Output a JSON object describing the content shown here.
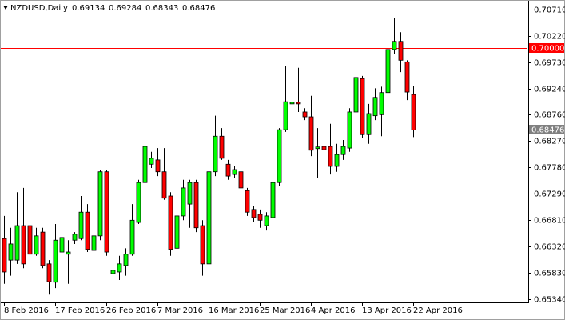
{
  "chart_data": {
    "type": "candlestick",
    "title": "NZDUSD,Daily",
    "categories": [
      "8 Feb 2016",
      null,
      null,
      null,
      null,
      null,
      null,
      null,
      "17 Feb 2016",
      null,
      null,
      null,
      null,
      null,
      null,
      null,
      "26 Feb 2016",
      null,
      null,
      null,
      null,
      null,
      null,
      null,
      "7 Mar 2016",
      null,
      null,
      null,
      null,
      null,
      null,
      null,
      "16 Mar 2016",
      null,
      null,
      null,
      null,
      null,
      null,
      null,
      "25 Mar 2016",
      null,
      null,
      null,
      null,
      null,
      null,
      null,
      "4 Apr 2016",
      null,
      null,
      null,
      null,
      null,
      null,
      null,
      "13 Apr 2016",
      null,
      null,
      null,
      null,
      null,
      null,
      null,
      "22 Apr 2016"
    ],
    "open": [
      0.6646,
      0.6606,
      0.6606,
      0.667,
      0.667,
      0.6617,
      0.6658,
      0.6599,
      0.6565,
      0.6621,
      0.6617,
      0.6643,
      0.6646,
      0.6695,
      0.6624,
      0.6651,
      0.677,
      0.6581,
      0.6584,
      0.6596,
      0.6617,
      0.6676,
      0.675,
      0.6784,
      0.6792,
      0.677,
      0.6725,
      0.6628,
      0.6688,
      0.671,
      0.675,
      0.667,
      0.6599,
      0.677,
      0.6836,
      0.6784,
      0.6765,
      0.677,
      0.6735,
      0.67,
      0.6691,
      0.667,
      0.6685,
      0.675,
      0.6848,
      0.6896,
      0.6899,
      0.6881,
      0.6872,
      0.6813,
      0.6817,
      0.6817,
      0.678,
      0.6802,
      0.6814,
      0.6881,
      0.6943,
      0.6839,
      0.6874,
      0.6876,
      0.6917,
      0.6997,
      0.7012,
      0.6974,
      0.69134
    ],
    "high": [
      0.6688,
      0.6666,
      0.6732,
      0.674,
      0.6688,
      0.6666,
      0.6666,
      0.6606,
      0.6673,
      0.6666,
      0.6643,
      0.6658,
      0.6725,
      0.671,
      0.6673,
      0.6774,
      0.6774,
      0.6591,
      0.6614,
      0.6628,
      0.671,
      0.6755,
      0.6822,
      0.6807,
      0.6814,
      0.6814,
      0.6732,
      0.671,
      0.6755,
      0.6755,
      0.6755,
      0.668,
      0.6777,
      0.6874,
      0.6851,
      0.6792,
      0.678,
      0.6784,
      0.674,
      0.6706,
      0.67,
      0.6695,
      0.6755,
      0.6851,
      0.6967,
      0.6918,
      0.6963,
      0.6888,
      0.6911,
      0.6851,
      0.6859,
      0.6859,
      0.6822,
      0.6829,
      0.6888,
      0.6951,
      0.6948,
      0.6896,
      0.6925,
      0.6928,
      0.7003,
      0.7056,
      0.7029,
      0.6977,
      0.69284
    ],
    "low": [
      0.6562,
      0.6577,
      0.6599,
      0.6591,
      0.6599,
      0.6614,
      0.6591,
      0.6542,
      0.6554,
      0.6599,
      0.6562,
      0.6636,
      0.6643,
      0.6621,
      0.6614,
      0.6643,
      0.6614,
      0.6562,
      0.6569,
      0.6577,
      0.6614,
      0.6673,
      0.6747,
      0.6777,
      0.6762,
      0.6718,
      0.6614,
      0.6621,
      0.668,
      0.6666,
      0.6658,
      0.6577,
      0.6577,
      0.6762,
      0.6792,
      0.6755,
      0.6759,
      0.6725,
      0.6688,
      0.6676,
      0.6666,
      0.6661,
      0.668,
      0.6744,
      0.6844,
      0.6851,
      0.6881,
      0.6866,
      0.6799,
      0.6759,
      0.6777,
      0.6765,
      0.677,
      0.6792,
      0.6807,
      0.6874,
      0.6833,
      0.6822,
      0.6866,
      0.6836,
      0.6893,
      0.6988,
      0.6955,
      0.6903,
      0.68343
    ],
    "close": [
      0.6584,
      0.6636,
      0.667,
      0.6599,
      0.6617,
      0.6651,
      0.6596,
      0.6566,
      0.6643,
      0.6648,
      0.6621,
      0.6654,
      0.6695,
      0.6626,
      0.6651,
      0.677,
      0.6621,
      0.6587,
      0.6599,
      0.6617,
      0.668,
      0.675,
      0.6817,
      0.6795,
      0.677,
      0.6721,
      0.6626,
      0.6688,
      0.674,
      0.675,
      0.6666,
      0.6599,
      0.677,
      0.6836,
      0.6795,
      0.6762,
      0.6774,
      0.674,
      0.6695,
      0.6685,
      0.668,
      0.6688,
      0.675,
      0.6848,
      0.69,
      0.6899,
      0.6896,
      0.6872,
      0.681,
      0.6816,
      0.6811,
      0.678,
      0.6802,
      0.6817,
      0.6881,
      0.6945,
      0.6839,
      0.6878,
      0.6908,
      0.6917,
      0.6997,
      0.7012,
      0.6977,
      0.6918,
      0.68476
    ],
    "up_color": "#00ff00",
    "down_color": "#ff0000",
    "wick_color": "#000000",
    "ylim": [
      0.65275,
      0.70844
    ],
    "yticks": [
      {
        "value": 0.7071,
        "label": "0.70710"
      },
      {
        "value": 0.7022,
        "label": "0.70220"
      },
      {
        "value": 0.6973,
        "label": "0.69730"
      },
      {
        "value": 0.6924,
        "label": "0.69240"
      },
      {
        "value": 0.6876,
        "label": "0.68760"
      },
      {
        "value": 0.6827,
        "label": "0.68270"
      },
      {
        "value": 0.6778,
        "label": "0.67780"
      },
      {
        "value": 0.6729,
        "label": "0.67290"
      },
      {
        "value": 0.6681,
        "label": "0.66810"
      },
      {
        "value": 0.6632,
        "label": "0.66320"
      },
      {
        "value": 0.6583,
        "label": "0.65830"
      },
      {
        "value": 0.6534,
        "label": "0.65340"
      }
    ],
    "reference_line": {
      "value": 0.7,
      "label": "0.70000",
      "color": "#ff0000"
    },
    "price_line_color": "#c0c0c0",
    "price_label_color": "#808080"
  }
}
